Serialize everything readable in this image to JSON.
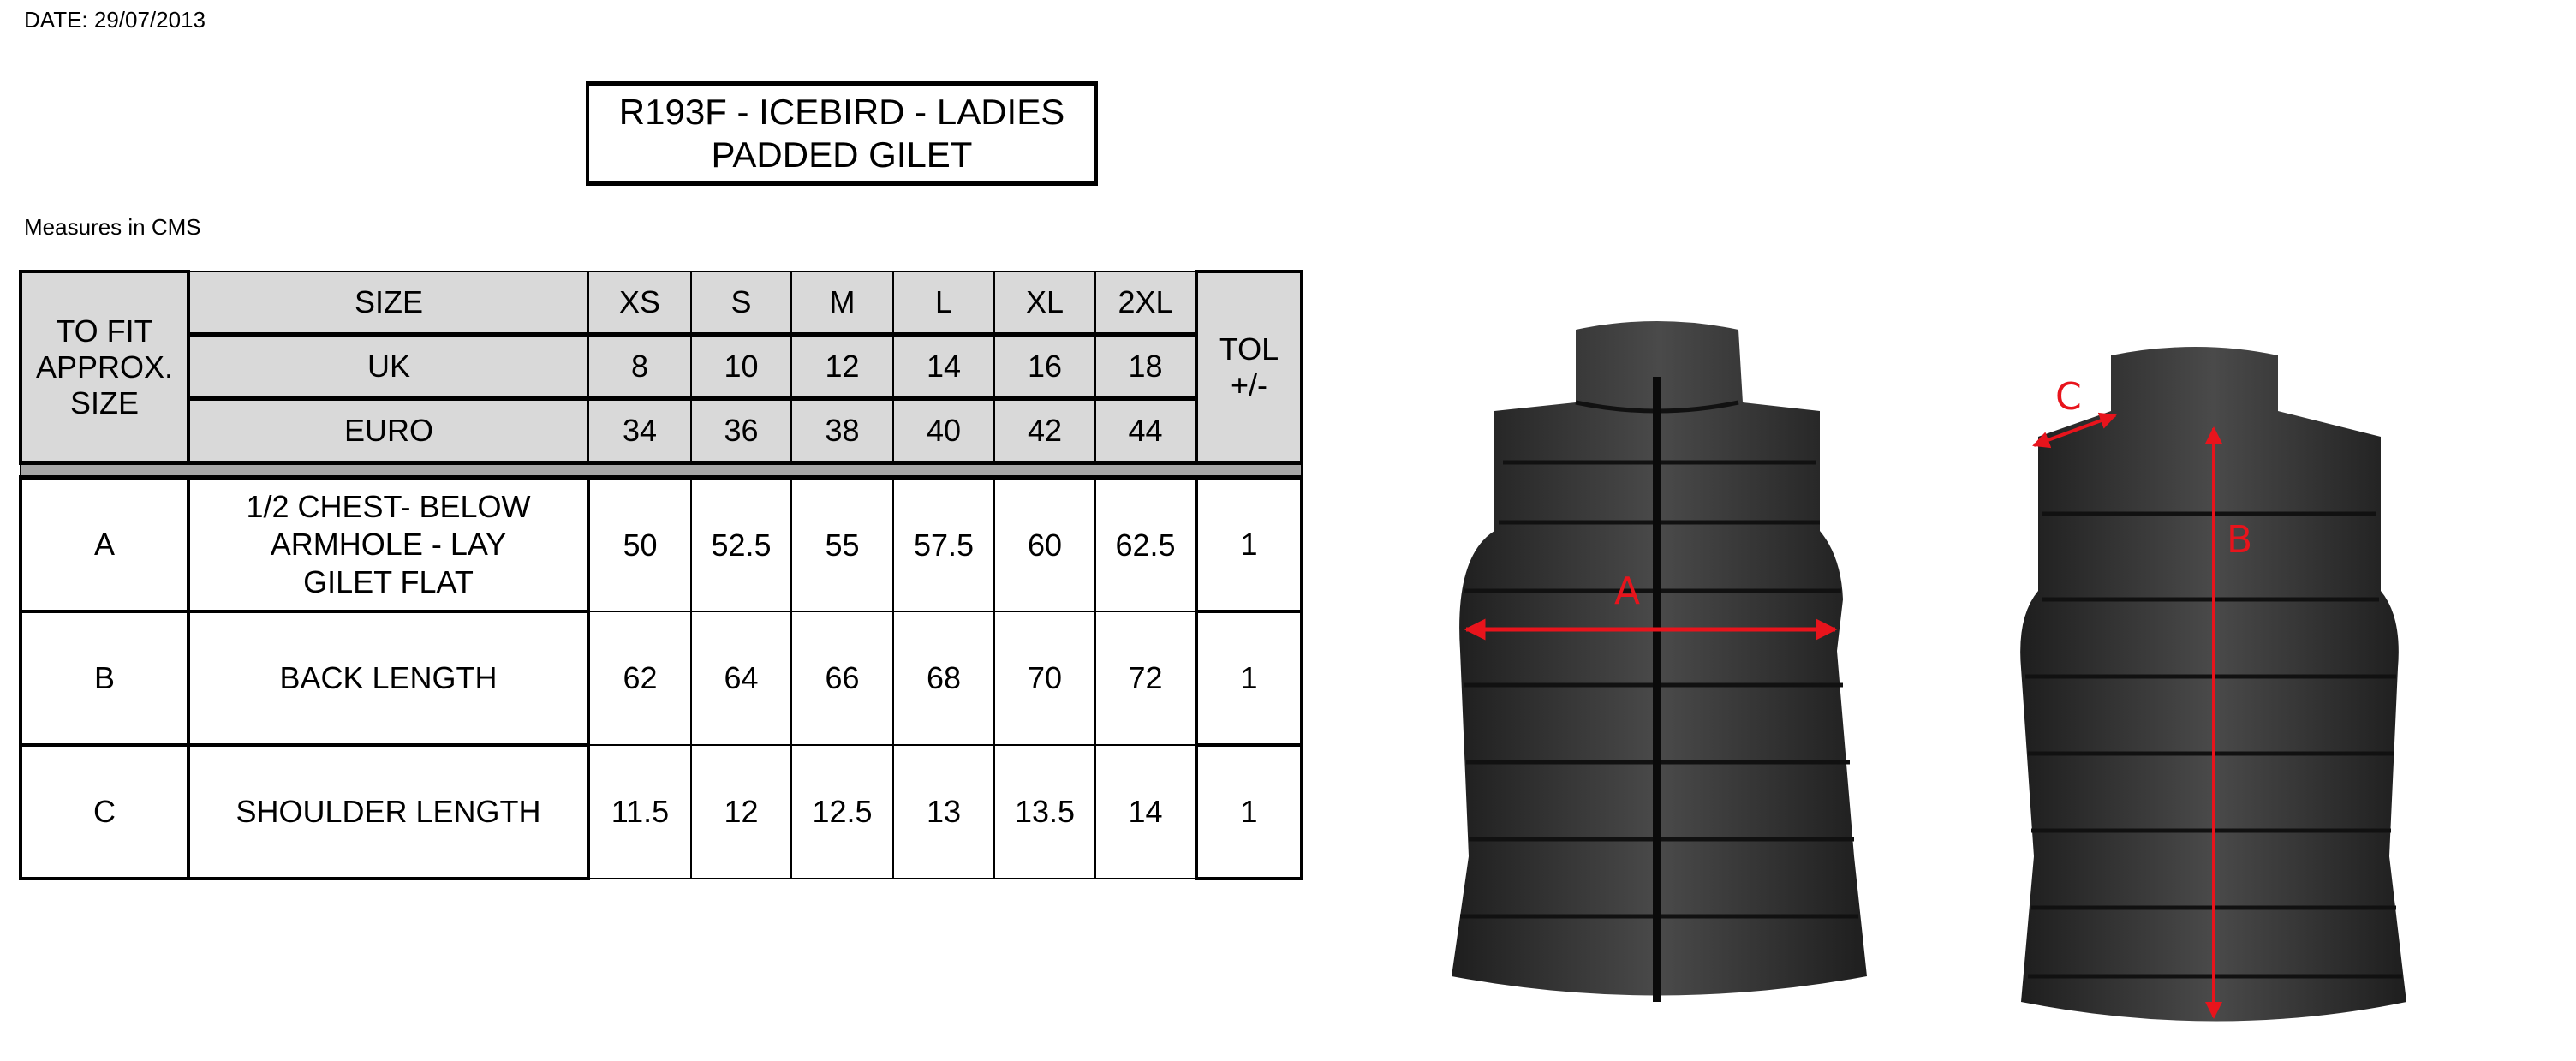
{
  "date": "DATE: 29/07/2013",
  "title": {
    "line1": "R193F - ICEBIRD - LADIES",
    "line2": "PADDED GILET"
  },
  "units_note": "Measures in CMS",
  "table": {
    "fit_label": "TO FIT APPROX. SIZE",
    "tol_label": "TOL +/-",
    "header_rows": [
      {
        "label": "SIZE",
        "values": [
          "XS",
          "S",
          "M",
          "L",
          "XL",
          "2XL"
        ]
      },
      {
        "label": "UK",
        "values": [
          "8",
          "10",
          "12",
          "14",
          "16",
          "18"
        ]
      },
      {
        "label": "EURO",
        "values": [
          "34",
          "36",
          "38",
          "40",
          "42",
          "44"
        ]
      }
    ],
    "rows": [
      {
        "code": "A",
        "description": "1/2 CHEST- BELOW ARMHOLE - LAY GILET FLAT",
        "values": [
          "50",
          "52.5",
          "55",
          "57.5",
          "60",
          "62.5"
        ],
        "tol": "1"
      },
      {
        "code": "B",
        "description": "BACK LENGTH",
        "values": [
          "62",
          "64",
          "66",
          "68",
          "70",
          "72"
        ],
        "tol": "1"
      },
      {
        "code": "C",
        "description": "SHOULDER LENGTH",
        "values": [
          "11.5",
          "12",
          "12.5",
          "13",
          "13.5",
          "14"
        ],
        "tol": "1"
      }
    ]
  },
  "diagram": {
    "front_label": "A",
    "back_labels": {
      "length": "B",
      "shoulder": "C"
    },
    "arrow_color": "#e8141c",
    "garment_color": "#2b2b2b"
  }
}
